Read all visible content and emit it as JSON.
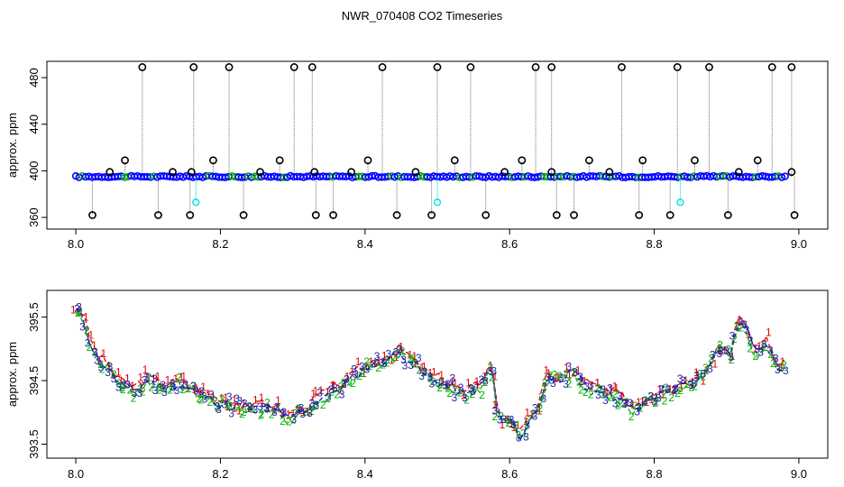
{
  "title": "NWR_070408  CO2 Timeseries",
  "colors": {
    "gray": "#888888",
    "black": "#000000",
    "blue": "#0000ff",
    "cyan": "#00e0e0",
    "green": "#00b000",
    "red": "#e00000",
    "darkblue": "#1f1fb0"
  },
  "chart_data": [
    {
      "type": "scatter",
      "ylabel": "approx. ppm",
      "xlim": [
        7.96,
        9.04
      ],
      "ylim": [
        350,
        494
      ],
      "x_ticks": [
        "8.0",
        "8.2",
        "8.4",
        "8.6",
        "8.8",
        "9.0"
      ],
      "y_ticks": [
        "360",
        "400",
        "440",
        "480"
      ],
      "baseline_ppm": 395,
      "series": [
        {
          "marker": "black-open-circle",
          "points_high": [
            [
              8.092,
              489
            ],
            [
              8.163,
              489
            ],
            [
              8.212,
              489
            ],
            [
              8.302,
              489
            ],
            [
              8.327,
              489
            ],
            [
              8.424,
              489
            ],
            [
              8.5,
              489
            ],
            [
              8.546,
              489
            ],
            [
              8.636,
              489
            ],
            [
              8.658,
              489
            ],
            [
              8.755,
              489
            ],
            [
              8.832,
              489
            ],
            [
              8.876,
              489
            ],
            [
              8.963,
              489
            ],
            [
              8.99,
              489
            ]
          ],
          "points_mid": [
            [
              8.047,
              399
            ],
            [
              8.068,
              409
            ],
            [
              8.134,
              399
            ],
            [
              8.16,
              399
            ],
            [
              8.19,
              409
            ],
            [
              8.255,
              399
            ],
            [
              8.282,
              409
            ],
            [
              8.33,
              399
            ],
            [
              8.381,
              399
            ],
            [
              8.404,
              409
            ],
            [
              8.47,
              399
            ],
            [
              8.524,
              409
            ],
            [
              8.593,
              399
            ],
            [
              8.617,
              409
            ],
            [
              8.658,
              399
            ],
            [
              8.71,
              409
            ],
            [
              8.738,
              399
            ],
            [
              8.784,
              409
            ],
            [
              8.856,
              409
            ],
            [
              8.917,
              399
            ],
            [
              8.943,
              409
            ],
            [
              8.99,
              399
            ]
          ],
          "points_low": [
            [
              8.023,
              362
            ],
            [
              8.114,
              362
            ],
            [
              8.158,
              362
            ],
            [
              8.232,
              362
            ],
            [
              8.332,
              362
            ],
            [
              8.356,
              362
            ],
            [
              8.444,
              362
            ],
            [
              8.492,
              362
            ],
            [
              8.567,
              362
            ],
            [
              8.665,
              362
            ],
            [
              8.689,
              362
            ],
            [
              8.779,
              362
            ],
            [
              8.822,
              362
            ],
            [
              8.902,
              362
            ],
            [
              8.994,
              362
            ]
          ]
        },
        {
          "marker": "cyan-open-circle",
          "points": [
            [
              8.166,
              373
            ],
            [
              8.5,
              373
            ],
            [
              8.836,
              373
            ]
          ]
        }
      ]
    },
    {
      "type": "line",
      "ylabel": "approx. ppm",
      "xlim": [
        7.96,
        9.04
      ],
      "ylim": [
        393.28,
        395.92
      ],
      "x_ticks": [
        "8.0",
        "8.2",
        "8.4",
        "8.6",
        "8.8",
        "9.0"
      ],
      "y_ticks": [
        "393.5",
        "394.5",
        "395.5"
      ],
      "series_labels": [
        "1",
        "2",
        "3"
      ],
      "anchors": [
        [
          8.0,
          395.6
        ],
        [
          8.01,
          395.5
        ],
        [
          8.02,
          395.1
        ],
        [
          8.03,
          394.85
        ],
        [
          8.045,
          394.7
        ],
        [
          8.06,
          394.45
        ],
        [
          8.08,
          394.35
        ],
        [
          8.1,
          394.5
        ],
        [
          8.12,
          394.4
        ],
        [
          8.14,
          394.45
        ],
        [
          8.16,
          394.35
        ],
        [
          8.2,
          394.15
        ],
        [
          8.25,
          394.05
        ],
        [
          8.27,
          394.1
        ],
        [
          8.29,
          393.9
        ],
        [
          8.3,
          393.95
        ],
        [
          8.32,
          394.05
        ],
        [
          8.34,
          394.25
        ],
        [
          8.36,
          394.35
        ],
        [
          8.38,
          394.5
        ],
        [
          8.4,
          394.7
        ],
        [
          8.42,
          394.8
        ],
        [
          8.45,
          394.95
        ],
        [
          8.465,
          394.8
        ],
        [
          8.48,
          394.6
        ],
        [
          8.5,
          394.5
        ],
        [
          8.52,
          394.4
        ],
        [
          8.54,
          394.25
        ],
        [
          8.56,
          394.45
        ],
        [
          8.575,
          394.75
        ],
        [
          8.585,
          393.85
        ],
        [
          8.6,
          393.9
        ],
        [
          8.615,
          393.6
        ],
        [
          8.63,
          393.9
        ],
        [
          8.64,
          394.1
        ],
        [
          8.65,
          394.5
        ],
        [
          8.67,
          394.55
        ],
        [
          8.69,
          394.6
        ],
        [
          8.71,
          394.4
        ],
        [
          8.73,
          394.3
        ],
        [
          8.75,
          394.25
        ],
        [
          8.77,
          394.05
        ],
        [
          8.79,
          394.2
        ],
        [
          8.81,
          394.35
        ],
        [
          8.83,
          394.4
        ],
        [
          8.85,
          394.45
        ],
        [
          8.87,
          394.6
        ],
        [
          8.89,
          395.05
        ],
        [
          8.905,
          394.9
        ],
        [
          8.915,
          395.45
        ],
        [
          8.93,
          395.25
        ],
        [
          8.94,
          394.9
        ],
        [
          8.955,
          395.1
        ],
        [
          8.97,
          394.7
        ],
        [
          8.985,
          394.7
        ]
      ]
    }
  ]
}
